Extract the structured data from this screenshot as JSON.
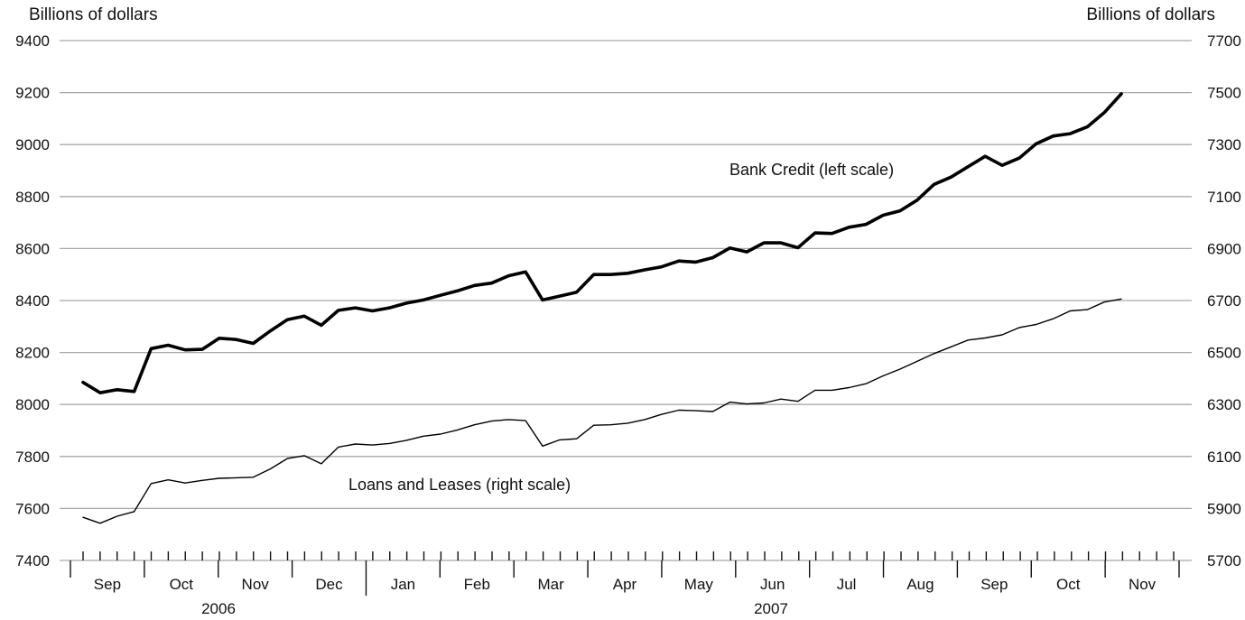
{
  "chart_data": {
    "type": "line",
    "left_axis": {
      "label": "Billions of dollars",
      "ylim": [
        7400,
        9400
      ],
      "ticks": [
        7400,
        7600,
        7800,
        8000,
        8200,
        8400,
        8600,
        8800,
        9000,
        9200,
        9400
      ]
    },
    "right_axis": {
      "label": "Billions of dollars",
      "ylim": [
        5700,
        7700
      ],
      "ticks": [
        5700,
        5900,
        6100,
        6300,
        6500,
        6700,
        6900,
        7100,
        7300,
        7500,
        7700
      ]
    },
    "x_axis": {
      "months": [
        {
          "label": "Sep",
          "year": "2006"
        },
        {
          "label": "Oct",
          "year": "2006"
        },
        {
          "label": "Nov",
          "year": "2006"
        },
        {
          "label": "Dec",
          "year": "2006"
        },
        {
          "label": "Jan",
          "year": "2007"
        },
        {
          "label": "Feb",
          "year": "2007"
        },
        {
          "label": "Mar",
          "year": "2007"
        },
        {
          "label": "Apr",
          "year": "2007"
        },
        {
          "label": "May",
          "year": "2007"
        },
        {
          "label": "Jun",
          "year": "2007"
        },
        {
          "label": "Jul",
          "year": "2007"
        },
        {
          "label": "Aug",
          "year": "2007"
        },
        {
          "label": "Sep",
          "year": "2007"
        },
        {
          "label": "Oct",
          "year": "2007"
        },
        {
          "label": "Nov",
          "year": "2007"
        }
      ],
      "years": [
        "2006",
        "2007"
      ],
      "weekly_ticks": 65
    },
    "grid": true,
    "series": [
      {
        "name": "Bank Credit (left scale)",
        "axis": "left",
        "color": "#000000",
        "weight": "heavy",
        "values": [
          8085,
          8045,
          8057,
          8050,
          8215,
          8228,
          8210,
          8212,
          8255,
          8250,
          8235,
          8283,
          8326,
          8340,
          8305,
          8362,
          8372,
          8360,
          8372,
          8390,
          8402,
          8420,
          8437,
          8458,
          8467,
          8495,
          8510,
          8402,
          8417,
          8432,
          8500,
          8500,
          8505,
          8518,
          8530,
          8552,
          8548,
          8565,
          8602,
          8587,
          8622,
          8622,
          8603,
          8660,
          8658,
          8682,
          8693,
          8728,
          8745,
          8786,
          8847,
          8875,
          8915,
          8955,
          8920,
          8948,
          9003,
          9033,
          9042,
          9068,
          9123,
          9195
        ]
      },
      {
        "name": "Loans and Leases (right scale)",
        "axis": "right",
        "color": "#000000",
        "weight": "light",
        "values": [
          5866,
          5843,
          5870,
          5888,
          5996,
          6010,
          5998,
          6008,
          6016,
          6018,
          6020,
          6052,
          6092,
          6103,
          6072,
          6136,
          6148,
          6144,
          6150,
          6162,
          6178,
          6186,
          6202,
          6222,
          6236,
          6242,
          6238,
          6140,
          6164,
          6168,
          6220,
          6222,
          6228,
          6242,
          6262,
          6278,
          6276,
          6273,
          6309,
          6302,
          6306,
          6321,
          6312,
          6355,
          6355,
          6365,
          6380,
          6410,
          6436,
          6466,
          6496,
          6522,
          6548,
          6556,
          6568,
          6596,
          6608,
          6630,
          6660,
          6665,
          6694,
          6706
        ]
      }
    ]
  }
}
